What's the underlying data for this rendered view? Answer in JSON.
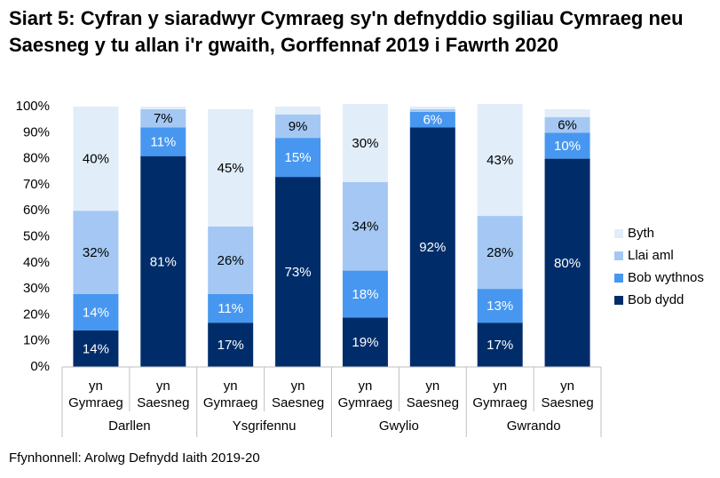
{
  "chart_data": {
    "type": "bar",
    "stacked": true,
    "title": "Siart 5: Cyfran y siaradwyr Cymraeg sy'n defnyddio sgiliau Cymraeg neu Saesneg y tu allan i'r gwaith, Gorffennaf 2019 i Fawrth 2020",
    "source": "Ffynhonnell: Arolwg Defnydd Iaith 2019-20",
    "ylim": [
      0,
      100
    ],
    "yticks": [
      "0%",
      "10%",
      "20%",
      "30%",
      "40%",
      "50%",
      "60%",
      "70%",
      "80%",
      "90%",
      "100%"
    ],
    "categories": [
      {
        "sub": [
          "yn",
          "Gymraeg"
        ],
        "group": "Darllen"
      },
      {
        "sub": [
          "yn",
          "Saesneg"
        ],
        "group": "Darllen"
      },
      {
        "sub": [
          "yn",
          "Gymraeg"
        ],
        "group": "Ysgrifennu"
      },
      {
        "sub": [
          "yn",
          "Saesneg"
        ],
        "group": "Ysgrifennu"
      },
      {
        "sub": [
          "yn",
          "Gymraeg"
        ],
        "group": "Gwylio"
      },
      {
        "sub": [
          "yn",
          "Saesneg"
        ],
        "group": "Gwylio"
      },
      {
        "sub": [
          "yn",
          "Gymraeg"
        ],
        "group": "Gwrando"
      },
      {
        "sub": [
          "yn",
          "Saesneg"
        ],
        "group": "Gwrando"
      }
    ],
    "groups": [
      "Darllen",
      "Ysgrifennu",
      "Gwylio",
      "Gwrando"
    ],
    "series": [
      {
        "name": "Bob dydd",
        "color": "#002d6a",
        "label_color": "#ffffff",
        "values": [
          14,
          81,
          17,
          73,
          19,
          92,
          17,
          80
        ],
        "labels": [
          "14%",
          "81%",
          "17%",
          "73%",
          "19%",
          "92%",
          "17%",
          "80%"
        ]
      },
      {
        "name": "Bob wythnos",
        "color": "#4797f0",
        "label_color": "#ffffff",
        "values": [
          14,
          11,
          11,
          15,
          18,
          6,
          13,
          10
        ],
        "labels": [
          "14%",
          "11%",
          "11%",
          "15%",
          "18%",
          "6%",
          "13%",
          "10%"
        ]
      },
      {
        "name": "Llai aml",
        "color": "#a4c8f3",
        "label_color": "#000000",
        "values": [
          32,
          7,
          26,
          9,
          34,
          1,
          28,
          6
        ],
        "labels": [
          "32%",
          "7%",
          "26%",
          "9%",
          "34%",
          "",
          "28%",
          "6%"
        ]
      },
      {
        "name": "Byth",
        "color": "#e1edf9",
        "label_color": "#000000",
        "values": [
          40,
          1,
          45,
          3,
          30,
          1,
          43,
          3
        ],
        "labels": [
          "40%",
          "",
          "45%",
          "",
          "30%",
          "",
          "43%",
          ""
        ]
      }
    ],
    "legend": {
      "position": "right",
      "order": [
        "Byth",
        "Llai aml",
        "Bob wythnos",
        "Bob dydd"
      ]
    },
    "grid": false
  }
}
